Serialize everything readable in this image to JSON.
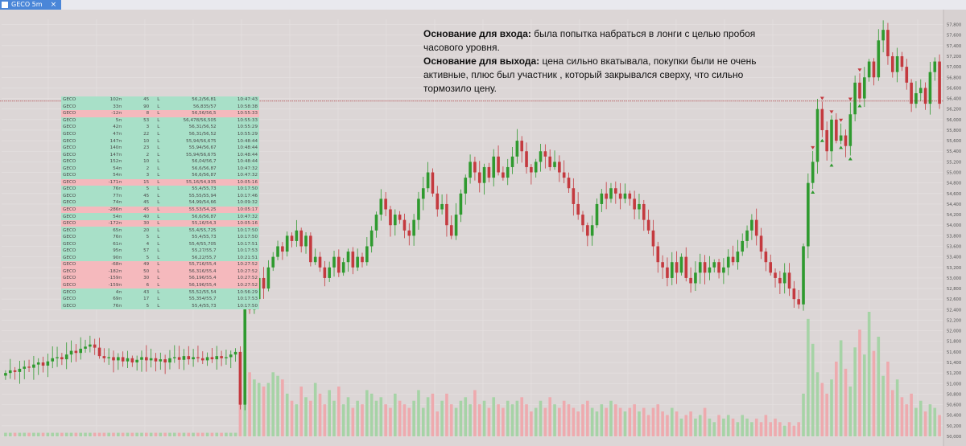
{
  "tab": {
    "title": "GECO 5m",
    "icon": "chart-icon",
    "close": "×"
  },
  "note": {
    "entry_label": "Основание для входа:",
    "entry_text": "была попытка набраться в лонги с целью пробоя часового уровня.",
    "exit_label": "Основание для выхода:",
    "exit_text": "цена сильно вкатывала, покупки были не очень активные, плюс был участник , который закрывался сверху, что сильно тормозило цену."
  },
  "trades": [
    {
      "ticker": "GECO",
      "qty": "102п",
      "n": "45",
      "side": "L",
      "price": "56,2/56,81",
      "time": "10:47:43",
      "type": "buy"
    },
    {
      "ticker": "GECO",
      "qty": "33п",
      "n": "90",
      "side": "L",
      "price": "56,835/57",
      "time": "10:58:38",
      "type": "buy"
    },
    {
      "ticker": "GECO",
      "qty": "-12п",
      "n": "8",
      "side": "L",
      "price": "56,56/56,5",
      "time": "10:55:33",
      "type": "sell"
    },
    {
      "ticker": "GECO",
      "qty": "5п",
      "n": "53",
      "side": "L",
      "price": "56,478/56,505",
      "time": "10:55:33",
      "type": "buy"
    },
    {
      "ticker": "GECO",
      "qty": "42п",
      "n": "3",
      "side": "L",
      "price": "56,31/56,52",
      "time": "10:55:29",
      "type": "buy"
    },
    {
      "ticker": "GECO",
      "qty": "47п",
      "n": "22",
      "side": "L",
      "price": "56,31/56,52",
      "time": "10:55:29",
      "type": "buy"
    },
    {
      "ticker": "GECO",
      "qty": "147п",
      "n": "10",
      "side": "L",
      "price": "55,94/56,675",
      "time": "10:48:44",
      "type": "buy"
    },
    {
      "ticker": "GECO",
      "qty": "140п",
      "n": "23",
      "side": "L",
      "price": "55,94/56,67",
      "time": "10:48:44",
      "type": "buy"
    },
    {
      "ticker": "GECO",
      "qty": "147п",
      "n": "2",
      "side": "L",
      "price": "55,94/56,675",
      "time": "10:48:44",
      "type": "buy"
    },
    {
      "ticker": "GECO",
      "qty": "152п",
      "n": "10",
      "side": "L",
      "price": "56,04/56,7",
      "time": "10:48:44",
      "type": "buy"
    },
    {
      "ticker": "GECO",
      "qty": "54п",
      "n": "2",
      "side": "L",
      "price": "56,6/56,87",
      "time": "10:47:32",
      "type": "buy"
    },
    {
      "ticker": "GECO",
      "qty": "54п",
      "n": "3",
      "side": "L",
      "price": "56,6/56,87",
      "time": "10:47:32",
      "type": "buy"
    },
    {
      "ticker": "GECO",
      "qty": "-171п",
      "n": "15",
      "side": "L",
      "price": "55,16/54,935",
      "time": "10:05:16",
      "type": "sell"
    },
    {
      "ticker": "GECO",
      "qty": "76п",
      "n": "5",
      "side": "L",
      "price": "55,4/55,73",
      "time": "10:17:50",
      "type": "buy"
    },
    {
      "ticker": "GECO",
      "qty": "77п",
      "n": "45",
      "side": "L",
      "price": "55,55/55,94",
      "time": "10:17:46",
      "type": "buy"
    },
    {
      "ticker": "GECO",
      "qty": "74п",
      "n": "45",
      "side": "L",
      "price": "54,99/54,66",
      "time": "10:09:32",
      "type": "buy"
    },
    {
      "ticker": "GECO",
      "qty": "-286п",
      "n": "45",
      "side": "L",
      "price": "55,53/54,25",
      "time": "10:05:17",
      "type": "sell"
    },
    {
      "ticker": "GECO",
      "qty": "54п",
      "n": "40",
      "side": "L",
      "price": "56,6/56,87",
      "time": "10:47:32",
      "type": "buy"
    },
    {
      "ticker": "GECO",
      "qty": "-172п",
      "n": "30",
      "side": "L",
      "price": "55,16/54,3",
      "time": "10:05:16",
      "type": "sell"
    },
    {
      "ticker": "GECO",
      "qty": "65п",
      "n": "20",
      "side": "L",
      "price": "55,4/55,725",
      "time": "10:17:50",
      "type": "buy"
    },
    {
      "ticker": "GECO",
      "qty": "76п",
      "n": "5",
      "side": "L",
      "price": "55,4/55,73",
      "time": "10:17:50",
      "type": "buy"
    },
    {
      "ticker": "GECO",
      "qty": "61п",
      "n": "4",
      "side": "L",
      "price": "55,4/55,705",
      "time": "10:17:51",
      "type": "buy"
    },
    {
      "ticker": "GECO",
      "qty": "95п",
      "n": "57",
      "side": "L",
      "price": "55,27/55,7",
      "time": "10:17:53",
      "type": "buy"
    },
    {
      "ticker": "GECO",
      "qty": "90п",
      "n": "5",
      "side": "L",
      "price": "56,22/55,7",
      "time": "10:21:51",
      "type": "buy"
    },
    {
      "ticker": "GECO",
      "qty": "-68п",
      "n": "49",
      "side": "L",
      "price": "55,716/55,4",
      "time": "10:27:52",
      "type": "sell"
    },
    {
      "ticker": "GECO",
      "qty": "-182п",
      "n": "50",
      "side": "L",
      "price": "56,316/55,4",
      "time": "10:27:52",
      "type": "sell"
    },
    {
      "ticker": "GECO",
      "qty": "-159п",
      "n": "30",
      "side": "L",
      "price": "56,196/55,4",
      "time": "10:27:52",
      "type": "sell"
    },
    {
      "ticker": "GECO",
      "qty": "-159п",
      "n": "6",
      "side": "L",
      "price": "56,196/55,4",
      "time": "10:27:52",
      "type": "sell"
    },
    {
      "ticker": "GECO",
      "qty": "4п",
      "n": "43",
      "side": "L",
      "price": "55,52/55,54",
      "time": "10:56:29",
      "type": "buy"
    },
    {
      "ticker": "GECO",
      "qty": "69п",
      "n": "17",
      "side": "L",
      "price": "55,354/55,7",
      "time": "10:17:53",
      "type": "buy"
    },
    {
      "ticker": "GECO",
      "qty": "76п",
      "n": "5",
      "side": "L",
      "price": "55,4/55,73",
      "time": "10:17:50",
      "type": "buy"
    }
  ],
  "chart_data": {
    "type": "candlestick",
    "ylim": [
      50.0,
      57.9
    ],
    "current_price": "56,350",
    "colors": {
      "up": "#2f9a2f",
      "down": "#c43a3f",
      "vol_up": "#a6d3a6",
      "vol_down": "#eeaaae",
      "price_tag": "#c8282e",
      "buy_marker": "#2f9a2f",
      "sell_marker": "#c43a3f"
    },
    "y_ticks": [
      {
        "v": 57.8,
        "label": "57,800"
      },
      {
        "v": 57.6,
        "label": "57,600"
      },
      {
        "v": 57.4,
        "label": "57,400"
      },
      {
        "v": 57.2,
        "label": "57,200"
      },
      {
        "v": 57.0,
        "label": "57,000"
      },
      {
        "v": 56.8,
        "label": "56,800"
      },
      {
        "v": 56.6,
        "label": "56,600"
      },
      {
        "v": 56.4,
        "label": "56,400"
      },
      {
        "v": 56.2,
        "label": "56,200"
      },
      {
        "v": 56.0,
        "label": "56,000"
      },
      {
        "v": 55.8,
        "label": "55,800"
      },
      {
        "v": 55.6,
        "label": "55,600"
      },
      {
        "v": 55.4,
        "label": "55,400"
      },
      {
        "v": 55.2,
        "label": "55,200"
      },
      {
        "v": 55.0,
        "label": "55,000"
      },
      {
        "v": 54.8,
        "label": "54,800"
      },
      {
        "v": 54.6,
        "label": "54,600"
      },
      {
        "v": 54.4,
        "label": "54,400"
      },
      {
        "v": 54.2,
        "label": "54,200"
      },
      {
        "v": 54.0,
        "label": "54,000"
      },
      {
        "v": 53.8,
        "label": "53,800"
      },
      {
        "v": 53.6,
        "label": "53,600"
      },
      {
        "v": 53.4,
        "label": "53,400"
      },
      {
        "v": 53.2,
        "label": "53,200"
      },
      {
        "v": 53.0,
        "label": "53,000"
      },
      {
        "v": 52.8,
        "label": "52,800"
      },
      {
        "v": 52.6,
        "label": "52,600"
      },
      {
        "v": 52.4,
        "label": "52,400"
      },
      {
        "v": 52.2,
        "label": "52,200"
      },
      {
        "v": 52.0,
        "label": "52,000"
      },
      {
        "v": 51.8,
        "label": "51,800"
      },
      {
        "v": 51.6,
        "label": "51,600"
      },
      {
        "v": 51.4,
        "label": "51,400"
      },
      {
        "v": 51.2,
        "label": "51,200"
      },
      {
        "v": 51.0,
        "label": "51,000"
      },
      {
        "v": 50.8,
        "label": "50,800"
      },
      {
        "v": 50.6,
        "label": "50,600"
      },
      {
        "v": 50.4,
        "label": "50,400"
      },
      {
        "v": 50.2,
        "label": "50,200"
      },
      {
        "v": 50.0,
        "label": "50,000"
      }
    ],
    "closes": [
      51.2,
      51.25,
      51.22,
      51.28,
      51.32,
      51.3,
      51.36,
      51.4,
      51.34,
      51.42,
      51.48,
      51.5,
      51.46,
      51.55,
      51.62,
      51.58,
      51.66,
      51.7,
      51.74,
      51.68,
      51.52,
      51.48,
      51.5,
      51.44,
      51.5,
      51.42,
      51.48,
      51.4,
      51.45,
      51.5,
      51.44,
      51.48,
      51.42,
      51.46,
      51.4,
      51.48,
      51.5,
      51.45,
      51.52,
      51.46,
      51.5,
      51.48,
      51.44,
      51.5,
      51.46,
      51.52,
      51.48,
      51.5,
      51.55,
      51.6,
      50.6,
      53.6,
      52.4,
      52.6,
      53.0,
      52.8,
      53.2,
      53.4,
      53.6,
      53.5,
      53.8,
      53.7,
      53.9,
      53.6,
      53.8,
      53.3,
      53.4,
      53.2,
      53.0,
      53.2,
      53.4,
      53.1,
      53.3,
      53.5,
      53.2,
      53.4,
      53.3,
      53.6,
      53.9,
      54.2,
      54.5,
      54.3,
      54.0,
      54.2,
      54.1,
      53.9,
      53.8,
      54.1,
      54.5,
      54.7,
      55.0,
      54.6,
      54.3,
      54.4,
      54.0,
      53.8,
      54.2,
      54.6,
      54.9,
      55.2,
      55.0,
      54.8,
      55.1,
      54.9,
      55.3,
      55.0,
      54.9,
      55.1,
      55.3,
      55.6,
      55.4,
      55.1,
      55.0,
      55.2,
      55.4,
      55.3,
      55.1,
      55.2,
      55.0,
      54.9,
      54.7,
      54.4,
      54.2,
      54.0,
      53.8,
      54.0,
      54.4,
      54.6,
      54.5,
      54.7,
      54.6,
      54.5,
      54.6,
      54.5,
      54.3,
      54.4,
      54.1,
      53.9,
      53.6,
      53.3,
      53.2,
      53.0,
      53.3,
      53.1,
      53.4,
      53.0,
      52.9,
      53.1,
      53.3,
      53.1,
      53.2,
      53.3,
      53.1,
      53.2,
      53.4,
      53.3,
      53.5,
      53.7,
      53.9,
      54.1,
      53.8,
      53.5,
      53.3,
      53.1,
      53.0,
      52.9,
      53.1,
      52.8,
      52.6,
      52.5,
      53.6,
      54.8,
      55.2,
      56.2,
      55.8,
      55.4,
      56.0,
      55.6,
      55.7,
      55.5,
      56.1,
      56.7,
      56.4,
      56.8,
      57.1,
      56.8,
      57.5,
      57.7,
      57.2,
      56.9,
      57.2,
      57.0,
      56.7,
      56.3,
      56.5,
      56.6,
      56.3,
      56.9,
      57.1,
      56.3
    ],
    "volumes": [
      1,
      1,
      1,
      1,
      1,
      1,
      1,
      1,
      1,
      1,
      1,
      1,
      1,
      1,
      1,
      1,
      1,
      1,
      1,
      1,
      1,
      1,
      1,
      1,
      1,
      1,
      1,
      1,
      1,
      1,
      1,
      1,
      1,
      1,
      1,
      1,
      1,
      1,
      1,
      1,
      1,
      1,
      1,
      1,
      1,
      1,
      1,
      1,
      1,
      1,
      14,
      21,
      18,
      16,
      15,
      14,
      15,
      18,
      17,
      16,
      12,
      10,
      9,
      14,
      11,
      10,
      15,
      12,
      9,
      13,
      10,
      14,
      9,
      11,
      8,
      10,
      9,
      13,
      12,
      10,
      11,
      9,
      8,
      12,
      10,
      9,
      8,
      10,
      13,
      8,
      11,
      12,
      7,
      10,
      12,
      9,
      8,
      10,
      11,
      9,
      13,
      9,
      10,
      8,
      11,
      9,
      8,
      10,
      9,
      10,
      11,
      9,
      7,
      8,
      10,
      8,
      11,
      9,
      8,
      10,
      9,
      8,
      7,
      9,
      10,
      8,
      7,
      9,
      8,
      10,
      9,
      8,
      7,
      8,
      9,
      7,
      8,
      6,
      8,
      9,
      7,
      6,
      8,
      7,
      5,
      6,
      7,
      5,
      6,
      8,
      5,
      4,
      6,
      5,
      6,
      5,
      4,
      6,
      5,
      4,
      5,
      4,
      6,
      4,
      5,
      4,
      3,
      4,
      3,
      4,
      12,
      33,
      26,
      18,
      15,
      12,
      16,
      21,
      27,
      19,
      14,
      25,
      30,
      23,
      35,
      24,
      28,
      17,
      21,
      13,
      16,
      11,
      9,
      12,
      8,
      10,
      7,
      9,
      8,
      6
    ]
  }
}
